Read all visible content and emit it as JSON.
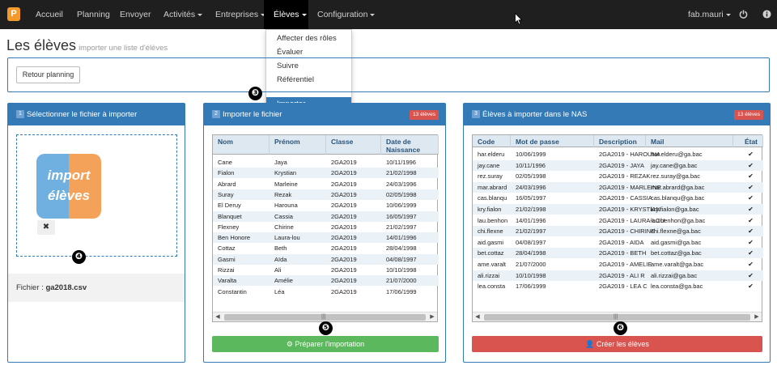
{
  "nav": {
    "logo": "P",
    "items": [
      {
        "label": "Accueil",
        "dropdown": false
      },
      {
        "label": "Planning",
        "dropdown": false
      },
      {
        "label": "Envoyer",
        "dropdown": false
      },
      {
        "label": "Activités",
        "dropdown": true
      },
      {
        "label": "Entreprises",
        "dropdown": true
      },
      {
        "label": "Élèves",
        "dropdown": true
      },
      {
        "label": "Configuration",
        "dropdown": true
      }
    ],
    "user": "fab.mauri",
    "power_icon": "power-icon",
    "info_icon": "info-icon"
  },
  "dropdown": {
    "items": [
      "Affecter des rôles",
      "Évaluer",
      "Suivre",
      "Référentiel",
      "Importer"
    ],
    "highlighted": "Importer"
  },
  "page": {
    "title": "Les élèves",
    "subtitle": "importer une liste d'élèves",
    "retour_label": "Retour planning"
  },
  "panel1": {
    "step": "1",
    "title": "Sélectionner le fichier à importer",
    "logo_line1": "import",
    "logo_line2": "élèves",
    "remove_icon": "close-icon",
    "file_label": "Fichier :",
    "file_name": "ga2018.csv"
  },
  "panel2": {
    "step": "2",
    "title": "Importer le fichier",
    "badge": "13 élèves",
    "columns": [
      "Nom",
      "Prénom",
      "Classe",
      "Date de Naissance"
    ],
    "rows": [
      [
        "Cane",
        "Jaya",
        "2GA2019",
        "10/11/1996"
      ],
      [
        "Fialon",
        "Krystian",
        "2GA2019",
        "21/02/1998"
      ],
      [
        "Abrard",
        "Marleine",
        "2GA2019",
        "24/03/1996"
      ],
      [
        "Suray",
        "Rezak",
        "2GA2019",
        "02/05/1998"
      ],
      [
        "El Deruy",
        "Harouna",
        "2GA2019",
        "10/06/1999"
      ],
      [
        "Blanquet",
        "Cassia",
        "2GA2019",
        "16/05/1997"
      ],
      [
        "Flexney",
        "Chirine",
        "2GA2019",
        "21/02/1997"
      ],
      [
        "Ben Honore",
        "Laura-lou",
        "2GA2019",
        "14/01/1996"
      ],
      [
        "Cottaz",
        "Beth",
        "2GA2019",
        "28/04/1998"
      ],
      [
        "Gasmi",
        "Aïda",
        "2GA2019",
        "04/08/1997"
      ],
      [
        "Rizzai",
        "Ali",
        "2GA2019",
        "10/10/1998"
      ],
      [
        "Varalta",
        "Amélie",
        "2GA2019",
        "21/07/2000"
      ],
      [
        "Constantin",
        "Léa",
        "2GA2019",
        "17/06/1999"
      ]
    ],
    "button_label": "Préparer l'importation"
  },
  "panel3": {
    "step": "3",
    "title": "Élèves à importer dans le NAS",
    "badge": "13 élèves",
    "columns": [
      "Code",
      "Mot de passe",
      "Description",
      "Mail",
      "État"
    ],
    "rows": [
      [
        "har.elderu",
        "10/06/1999",
        "2GA2019 - HAROUNA",
        "har.elderu@ga.bac"
      ],
      [
        "jay.cane",
        "10/11/1996",
        "2GA2019 - JAYA",
        "jay.cane@ga.bac"
      ],
      [
        "rez.suray",
        "02/05/1998",
        "2GA2019 - REZAK",
        "rez.suray@ga.bac"
      ],
      [
        "mar.abrard",
        "24/03/1996",
        "2GA2019 - MARLEINE",
        "mar.abrard@ga.bac"
      ],
      [
        "cas.blanqu",
        "16/05/1997",
        "2GA2019 - CASSIA",
        "cas.blanqu@ga.bac"
      ],
      [
        "kry.fialon",
        "21/02/1998",
        "2GA2019 - KRYSTIAN",
        "kry.fialon@ga.bac"
      ],
      [
        "lau.benhon",
        "14/01/1996",
        "2GA2019 - LAURA-LOU",
        "lau.benhon@ga.bac"
      ],
      [
        "chi.flexne",
        "21/02/1997",
        "2GA2019 - CHIRINE",
        "chi.flexne@ga.bac"
      ],
      [
        "aid.gasmi",
        "04/08/1997",
        "2GA2019 - AIDA",
        "aid.gasmi@ga.bac"
      ],
      [
        "bet.cottaz",
        "28/04/1998",
        "2GA2019 - BETH",
        "bet.cottaz@ga.bac"
      ],
      [
        "ame.varalt",
        "21/07/2000",
        "2GA2019 - AMELIE",
        "ame.varalt@ga.bac"
      ],
      [
        "ali.rizzai",
        "10/10/1998",
        "2GA2019 - ALI R",
        "ali.rizzai@ga.bac"
      ],
      [
        "lea.consta",
        "17/06/1999",
        "2GA2019 - LEA C",
        "lea.consta@ga.bac"
      ]
    ],
    "check_glyph": "✔",
    "button_label": "Créer les élèves"
  },
  "markers": [
    "❸",
    "❹",
    "❺",
    "❻"
  ]
}
